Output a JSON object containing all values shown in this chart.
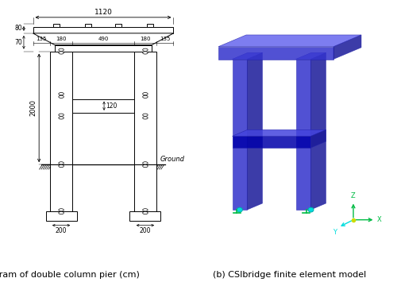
{
  "fig_width": 5.0,
  "fig_height": 3.55,
  "dpi": 100,
  "bg_color": "#ffffff",
  "caption_a": "(a) Diagram of double column pier (cm)",
  "caption_b": "(b) CSIbridge finite element model",
  "caption_fontsize": 8.0,
  "dim_1120": "1120",
  "dim_80": "80",
  "dim_70": "70",
  "dim_135": "135",
  "dim_180": "180",
  "dim_490": "490",
  "dim_2000": "2000",
  "dim_120": "120",
  "dim_200": "200",
  "ground_label": "Ground",
  "blue_front": "#3333cc",
  "blue_top": "#6666ee",
  "blue_side": "#1a1a99",
  "blue_dark": "#0000aa",
  "blue_trans": "#4444dd",
  "cyan_color": "#00dddd",
  "green_color": "#00bb44"
}
